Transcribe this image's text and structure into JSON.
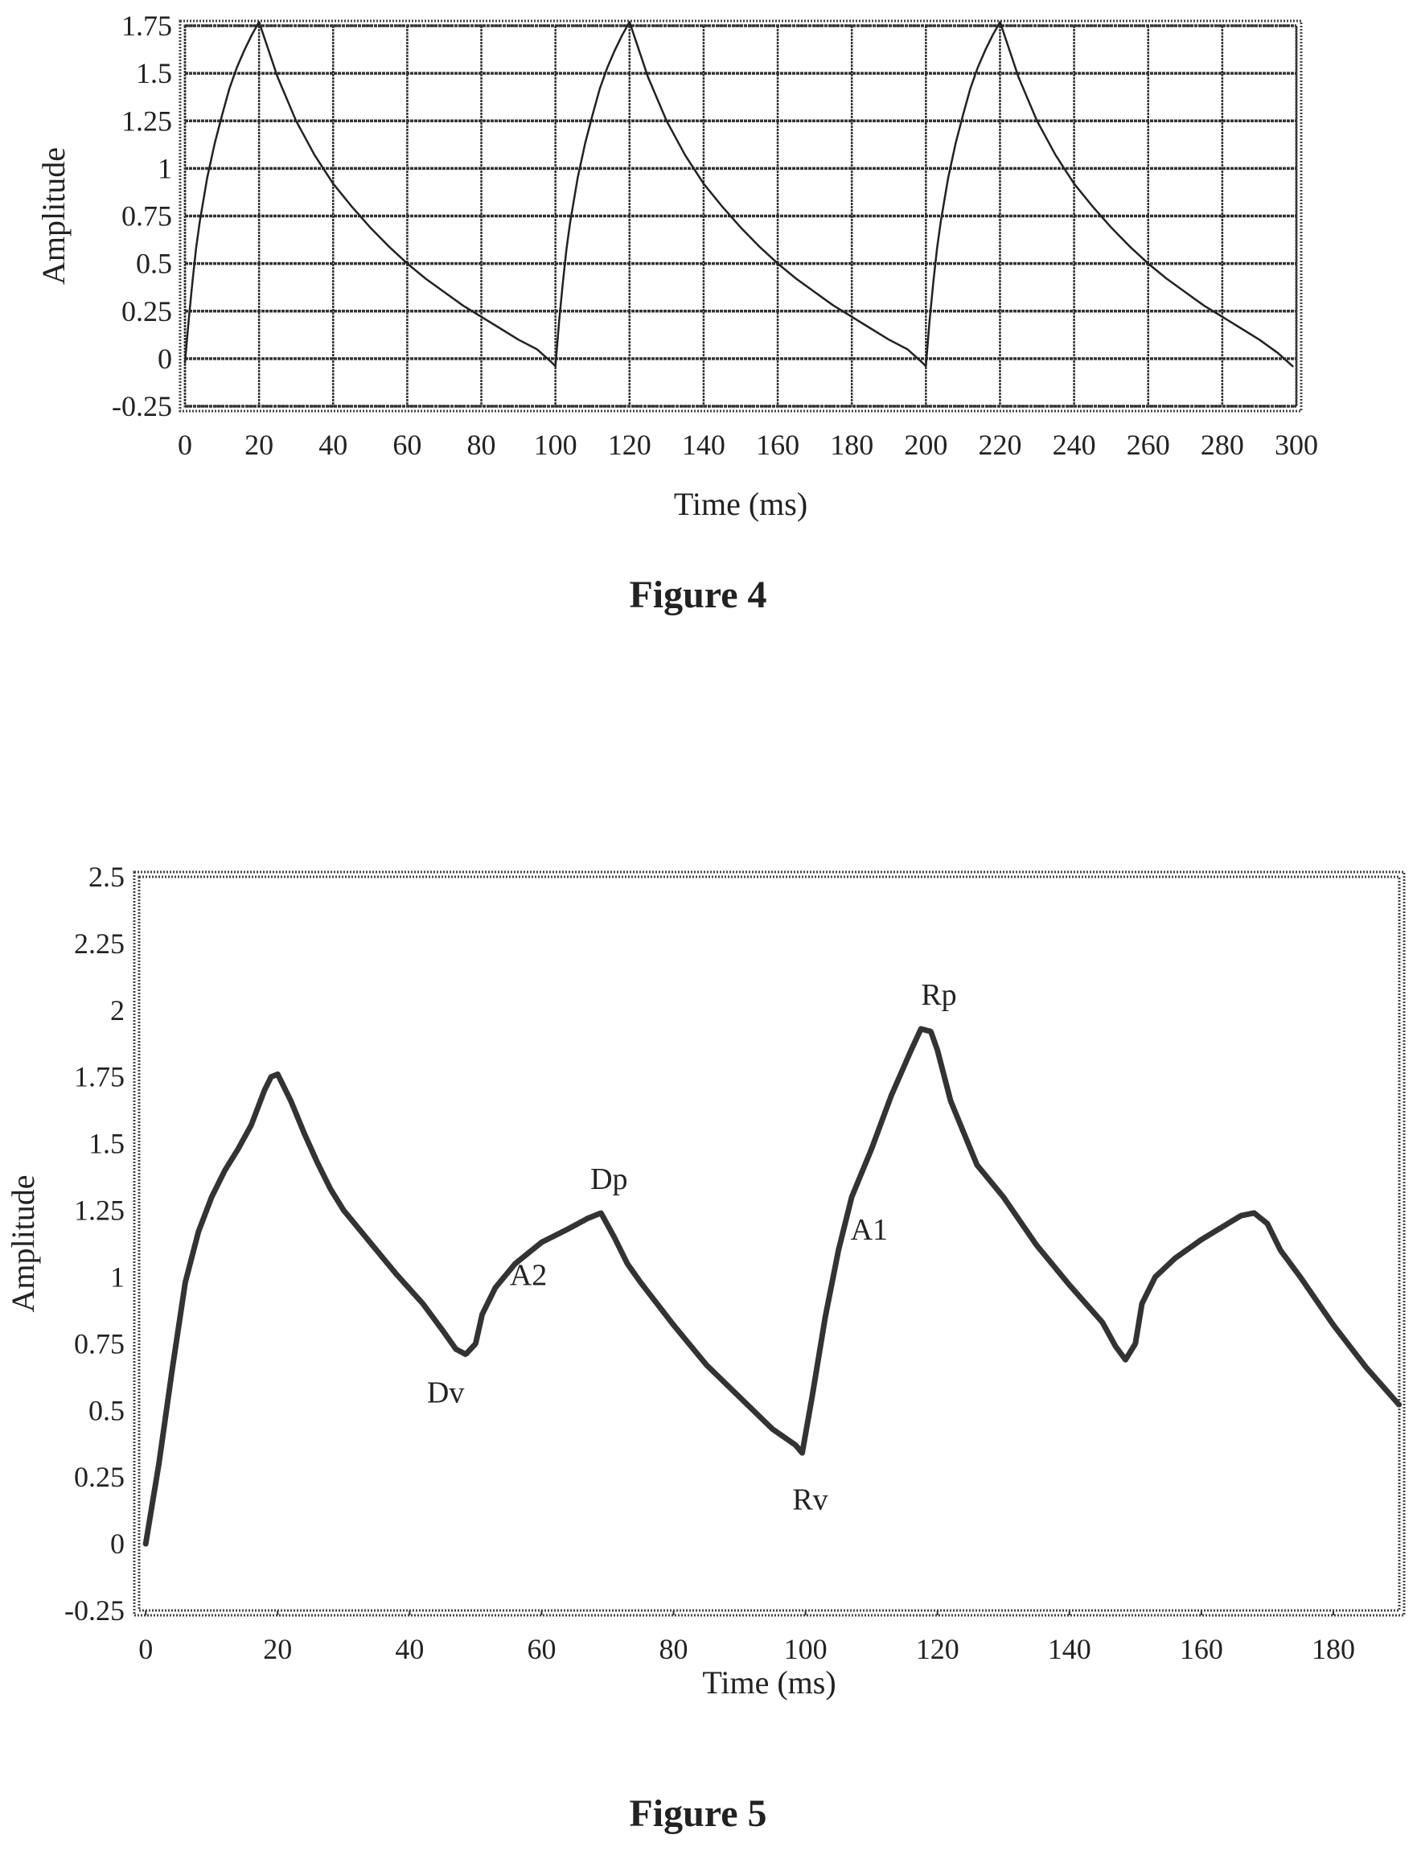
{
  "page_background": "#ffffff",
  "chart_data": [
    {
      "type": "line",
      "caption": "Figure 4",
      "xlabel": "Time (ms)",
      "ylabel": "Amplitude",
      "xlim": [
        0,
        300
      ],
      "ylim": [
        -0.25,
        1.75
      ],
      "x_ticks": [
        "0",
        "20",
        "40",
        "60",
        "80",
        "100",
        "120",
        "140",
        "160",
        "180",
        "200",
        "220",
        "240",
        "260",
        "280",
        "300"
      ],
      "y_ticks": [
        "1.75",
        "1.5",
        "1.25",
        "1",
        "0.75",
        "0.5",
        "0.25",
        "0",
        "-0.25"
      ],
      "grid": true,
      "line_color": "#222222",
      "series": [
        {
          "x": [
            0,
            1,
            2,
            3,
            4,
            6,
            8,
            10,
            12,
            14,
            16,
            18,
            20,
            25,
            30,
            35,
            40,
            45,
            50,
            55,
            60,
            65,
            70,
            75,
            80,
            85,
            90,
            95,
            99,
            100,
            101,
            102,
            103,
            104,
            106,
            108,
            110,
            112,
            114,
            116,
            118,
            120,
            125,
            130,
            135,
            140,
            145,
            150,
            155,
            160,
            165,
            170,
            175,
            180,
            185,
            190,
            195,
            199,
            200,
            201,
            202,
            203,
            204,
            206,
            208,
            210,
            212,
            214,
            216,
            218,
            220,
            225,
            230,
            235,
            240,
            245,
            250,
            255,
            260,
            265,
            270,
            275,
            280,
            285,
            290,
            295,
            299
          ],
          "y": [
            -0.02,
            0.2,
            0.4,
            0.58,
            0.72,
            0.95,
            1.13,
            1.28,
            1.42,
            1.53,
            1.62,
            1.7,
            1.77,
            1.48,
            1.25,
            1.07,
            0.92,
            0.8,
            0.69,
            0.59,
            0.5,
            0.42,
            0.35,
            0.28,
            0.22,
            0.16,
            0.1,
            0.05,
            -0.02,
            -0.04,
            0.2,
            0.4,
            0.58,
            0.72,
            0.95,
            1.13,
            1.28,
            1.42,
            1.53,
            1.62,
            1.7,
            1.77,
            1.48,
            1.25,
            1.07,
            0.92,
            0.8,
            0.69,
            0.59,
            0.5,
            0.42,
            0.35,
            0.28,
            0.22,
            0.16,
            0.1,
            0.05,
            -0.02,
            -0.04,
            0.2,
            0.4,
            0.58,
            0.72,
            0.95,
            1.13,
            1.28,
            1.42,
            1.53,
            1.62,
            1.7,
            1.77,
            1.48,
            1.25,
            1.07,
            0.92,
            0.8,
            0.69,
            0.59,
            0.5,
            0.42,
            0.35,
            0.28,
            0.22,
            0.16,
            0.1,
            0.03,
            -0.04
          ]
        }
      ]
    },
    {
      "type": "line",
      "caption": "Figure 5",
      "xlabel": "Time (ms)",
      "ylabel": "Amplitude",
      "xlim": [
        -1,
        190
      ],
      "ylim": [
        -0.25,
        2.5
      ],
      "x_ticks": [
        "0",
        "20",
        "40",
        "60",
        "80",
        "100",
        "120",
        "140",
        "160",
        "180"
      ],
      "y_ticks": [
        "2.5",
        "2.25",
        "2",
        "1.75",
        "1.5",
        "1.25",
        "1",
        "0.75",
        "0.5",
        "0.25",
        "0",
        "-0.25"
      ],
      "grid": false,
      "line_color": "#333333",
      "series": [
        {
          "x": [
            0,
            2,
            4,
            6,
            8,
            10,
            12,
            14,
            16,
            18,
            19,
            20,
            22,
            24,
            26,
            28,
            30,
            34,
            38,
            42,
            45,
            47,
            48.5,
            50,
            51,
            53,
            56,
            60,
            64,
            67,
            69,
            71,
            73,
            75,
            80,
            85,
            90,
            95,
            98.5,
            99.5,
            101,
            103,
            105,
            107,
            110,
            113,
            116,
            117.5,
            119,
            120,
            122,
            124,
            126,
            130,
            135,
            140,
            145,
            147,
            148.5,
            150,
            151,
            153,
            156,
            160,
            164,
            166,
            168,
            170,
            172,
            175,
            180,
            185,
            190
          ],
          "y": [
            0.0,
            0.3,
            0.65,
            0.98,
            1.17,
            1.3,
            1.4,
            1.48,
            1.57,
            1.7,
            1.75,
            1.76,
            1.66,
            1.54,
            1.43,
            1.33,
            1.25,
            1.13,
            1.01,
            0.9,
            0.8,
            0.73,
            0.71,
            0.75,
            0.86,
            0.96,
            1.05,
            1.13,
            1.18,
            1.22,
            1.24,
            1.15,
            1.05,
            0.98,
            0.82,
            0.67,
            0.55,
            0.43,
            0.37,
            0.34,
            0.55,
            0.85,
            1.1,
            1.3,
            1.48,
            1.68,
            1.85,
            1.93,
            1.92,
            1.85,
            1.66,
            1.54,
            1.42,
            1.3,
            1.12,
            0.97,
            0.83,
            0.74,
            0.69,
            0.75,
            0.9,
            1.0,
            1.07,
            1.14,
            1.2,
            1.23,
            1.24,
            1.2,
            1.1,
            1.0,
            0.82,
            0.66,
            0.52
          ]
        }
      ],
      "annotations": [
        {
          "label": "Dv",
          "x": 48.5,
          "y": 0.71,
          "dx": -25,
          "dy": 60
        },
        {
          "label": "A2",
          "x": 58,
          "y": 1.09,
          "dx": 0,
          "dy": 40
        },
        {
          "label": "Dp",
          "x": 69,
          "y": 1.24,
          "dx": 10,
          "dy": -30
        },
        {
          "label": "Rv",
          "x": 99.5,
          "y": 0.34,
          "dx": 10,
          "dy": 70
        },
        {
          "label": "A1",
          "x": 106,
          "y": 1.2,
          "dx": 30,
          "dy": 20
        },
        {
          "label": "Rp",
          "x": 119,
          "y": 1.93,
          "dx": 10,
          "dy": -30
        }
      ]
    }
  ]
}
